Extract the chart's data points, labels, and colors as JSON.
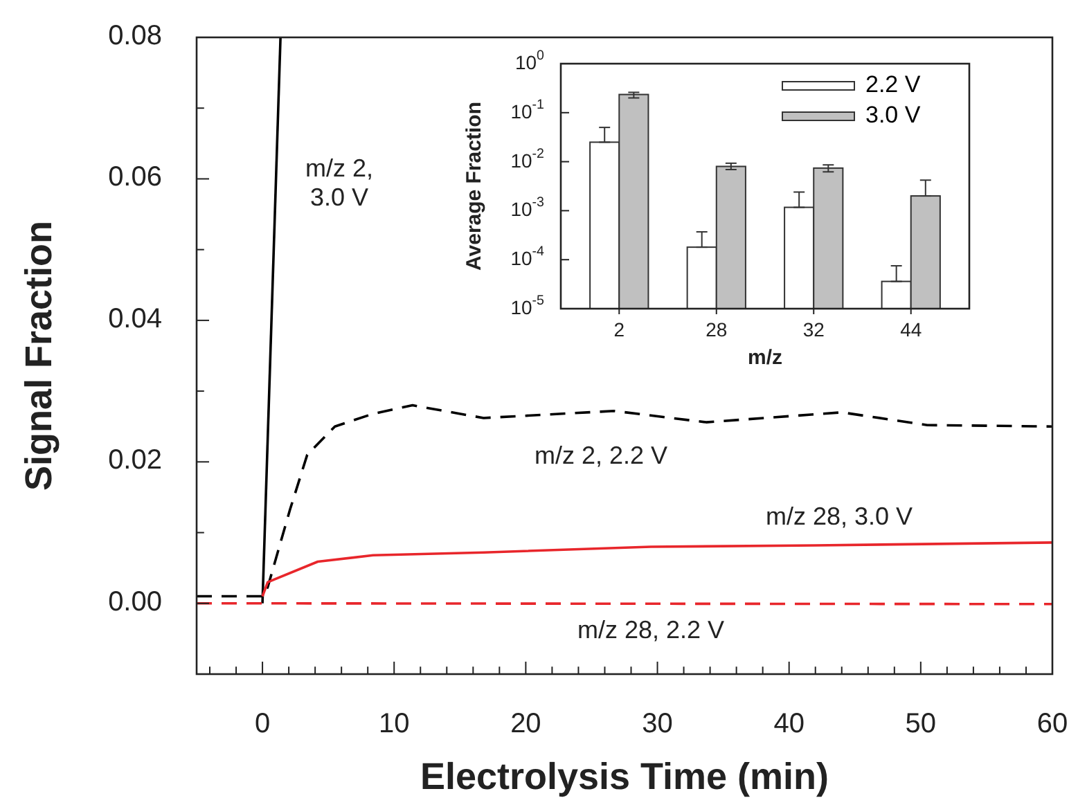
{
  "chart_data": [
    {
      "type": "line",
      "xlabel": "Electrolysis Time (min)",
      "ylabel": "Signal Fraction",
      "xlim": [
        -5,
        60
      ],
      "ylim": [
        -0.01,
        0.08
      ],
      "xticks": [
        {
          "value": -4,
          "label": null
        },
        {
          "value": -2,
          "label": null
        },
        0,
        {
          "value": 2,
          "label": null
        },
        {
          "value": 4,
          "label": null
        },
        {
          "value": 6,
          "label": null
        },
        {
          "value": 8,
          "label": null
        },
        10,
        {
          "value": 12,
          "label": null
        },
        {
          "value": 14,
          "label": null
        },
        {
          "value": 16,
          "label": null
        },
        {
          "value": 18,
          "label": null
        },
        20,
        {
          "value": 22,
          "label": null
        },
        {
          "value": 24,
          "label": null
        },
        {
          "value": 26,
          "label": null
        },
        {
          "value": 28,
          "label": null
        },
        30,
        {
          "value": 32,
          "label": null
        },
        {
          "value": 34,
          "label": null
        },
        {
          "value": 36,
          "label": null
        },
        {
          "value": 38,
          "label": null
        },
        40,
        {
          "value": 42,
          "label": null
        },
        {
          "value": 44,
          "label": null
        },
        {
          "value": 46,
          "label": null
        },
        {
          "value": 48,
          "label": null
        },
        50,
        {
          "value": 52,
          "label": null
        },
        {
          "value": 54,
          "label": null
        },
        {
          "value": 56,
          "label": null
        },
        {
          "value": 58,
          "label": null
        },
        60
      ],
      "yticks": [
        {
          "value": 0,
          "label": "0.00"
        },
        {
          "value": 0.01,
          "label": null
        },
        {
          "value": 0.02,
          "label": "0.02"
        },
        {
          "value": 0.03,
          "label": null
        },
        {
          "value": 0.04,
          "label": "0.04"
        },
        {
          "value": 0.05,
          "label": null
        },
        {
          "value": 0.06,
          "label": "0.06"
        },
        {
          "value": 0.07,
          "label": null
        },
        {
          "value": 0.08,
          "label": "0.08"
        }
      ],
      "series": [
        {
          "name": "m/z 2, 3.0 V",
          "color": "#000000",
          "line_style": "solid",
          "x": [
            0,
            1.37
          ],
          "values": [
            0,
            0.08
          ]
        },
        {
          "name": "m/z 2, 2.2 V",
          "color": "#000000",
          "line_style": "dashed",
          "x": [
            -5,
            0,
            0.4,
            2.1,
            3.4,
            5.5,
            8.4,
            11.4,
            16.8,
            26.7,
            33.7,
            44,
            50.5,
            60
          ],
          "values": [
            0.001,
            0.001,
            0.0023,
            0.0133,
            0.021,
            0.025,
            0.0268,
            0.028,
            0.0262,
            0.0272,
            0.0256,
            0.027,
            0.0252,
            0.025
          ]
        },
        {
          "name": "m/z 28, 3.0 V",
          "color": "#e8262b",
          "line_style": "solid",
          "x": [
            0,
            0.4,
            4.2,
            8.4,
            16.8,
            29.5,
            42,
            60
          ],
          "values": [
            0.001,
            0.003,
            0.0059,
            0.0068,
            0.0072,
            0.008,
            0.0082,
            0.0086
          ]
        },
        {
          "name": "m/z 28, 2.2 V",
          "color": "#e8262b",
          "line_style": "dashed",
          "x": [
            -5,
            0,
            60
          ],
          "values": [
            0,
            0,
            -0.0001
          ]
        }
      ]
    },
    {
      "type": "bar",
      "xlabel": "m/z",
      "ylabel": "Average Fraction",
      "log": true,
      "ylim": [
        1e-05,
        1
      ],
      "legend": "top right",
      "yticks": [
        {
          "value": 1e-05,
          "label": "10$^{-5}$"
        },
        {
          "value": 0.0001,
          "label": "10$^{-4}$"
        },
        {
          "value": 0.001,
          "label": "10$^{-3}$"
        },
        {
          "value": 0.01,
          "label": "10$^{-2}$"
        },
        {
          "value": 0.1,
          "label": "10$^{-1}$"
        },
        {
          "value": 1,
          "label": "10$^{0}$"
        }
      ],
      "categories": [
        "2",
        "28",
        "32",
        "44"
      ],
      "series": [
        {
          "name": "2.2 V",
          "color": "#ffffff",
          "values": [
            0.025,
            0.00018,
            0.00117,
            3.6e-05
          ],
          "errors": [
            [
              0.025,
              0.05
            ],
            [
              0.00018,
              0.00037
            ],
            [
              0.00117,
              0.0024
            ],
            [
              3.6e-05,
              7.5e-05
            ]
          ]
        },
        {
          "name": "3.0 V",
          "color": "#c0c0c0",
          "values": [
            0.235,
            0.008,
            0.0074,
            0.002
          ],
          "errors": [
            [
              0.2,
              0.26
            ],
            [
              0.0069,
              0.0093
            ],
            [
              0.0062,
              0.0086
            ],
            [
              0.002,
              0.0042
            ]
          ]
        }
      ]
    }
  ]
}
